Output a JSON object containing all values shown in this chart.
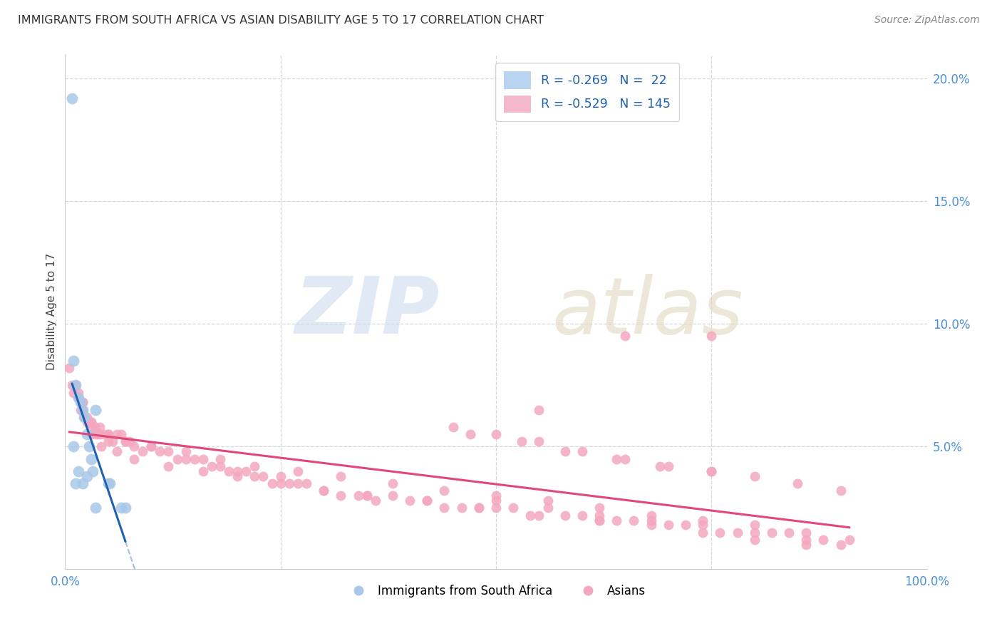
{
  "title": "IMMIGRANTS FROM SOUTH AFRICA VS ASIAN DISABILITY AGE 5 TO 17 CORRELATION CHART",
  "source": "Source: ZipAtlas.com",
  "ylabel": "Disability Age 5 to 17",
  "xlim": [
    0,
    100
  ],
  "ylim": [
    0,
    21
  ],
  "yticks": [
    5,
    10,
    15,
    20
  ],
  "ytick_labels": [
    "5.0%",
    "10.0%",
    "15.0%",
    "20.0%"
  ],
  "xticks": [
    0,
    25,
    50,
    75,
    100
  ],
  "xtick_labels": [
    "0.0%",
    "",
    "",
    "",
    "100.0%"
  ],
  "blue_color": "#a8c8e8",
  "pink_color": "#f4a8c0",
  "blue_line_color": "#2060b0",
  "pink_line_color": "#e04878",
  "grid_color": "#d8d8d8",
  "blue_x": [
    0.8,
    1.0,
    1.2,
    1.5,
    1.8,
    2.0,
    2.2,
    2.5,
    2.8,
    3.0,
    3.2,
    3.5,
    5.0,
    5.2,
    6.5,
    7.0,
    1.0,
    1.5,
    2.0,
    2.5,
    3.5,
    1.2
  ],
  "blue_y": [
    19.2,
    8.5,
    7.5,
    7.0,
    6.8,
    6.5,
    6.2,
    5.5,
    5.0,
    4.5,
    4.0,
    6.5,
    3.5,
    3.5,
    2.5,
    2.5,
    5.0,
    4.0,
    3.5,
    3.8,
    2.5,
    3.5
  ],
  "pink_x": [
    0.5,
    0.8,
    1.0,
    1.2,
    1.5,
    1.5,
    1.8,
    1.8,
    2.0,
    2.0,
    2.2,
    2.5,
    2.5,
    2.8,
    3.0,
    3.0,
    3.5,
    3.5,
    3.8,
    4.0,
    4.0,
    4.5,
    5.0,
    5.0,
    5.5,
    6.0,
    6.5,
    7.0,
    7.5,
    8.0,
    9.0,
    10.0,
    11.0,
    12.0,
    13.0,
    14.0,
    15.0,
    16.0,
    17.0,
    18.0,
    19.0,
    20.0,
    21.0,
    22.0,
    23.0,
    24.0,
    25.0,
    26.0,
    27.0,
    28.0,
    30.0,
    32.0,
    34.0,
    35.0,
    36.0,
    38.0,
    40.0,
    42.0,
    44.0,
    46.0,
    48.0,
    50.0,
    50.0,
    52.0,
    54.0,
    56.0,
    58.0,
    60.0,
    62.0,
    62.0,
    64.0,
    66.0,
    68.0,
    70.0,
    72.0,
    74.0,
    76.0,
    78.0,
    80.0,
    82.0,
    84.0,
    86.0,
    88.0,
    90.0,
    55.0,
    3.0,
    4.2,
    6.0,
    8.0,
    12.0,
    16.0,
    20.0,
    25.0,
    30.0,
    35.0,
    42.0,
    48.0,
    55.0,
    62.0,
    68.0,
    74.0,
    80.0,
    86.0,
    45.0,
    50.0,
    55.0,
    60.0,
    65.0,
    70.0,
    75.0,
    80.0,
    85.0,
    90.0,
    2.0,
    3.0,
    5.0,
    7.0,
    10.0,
    14.0,
    18.0,
    22.0,
    27.0,
    32.0,
    38.0,
    44.0,
    50.0,
    56.0,
    62.0,
    68.0,
    74.0,
    80.0,
    86.0,
    91.0,
    47.0,
    53.0,
    58.0,
    64.0,
    69.0,
    75.0,
    65.0,
    75.0
  ],
  "pink_y": [
    8.2,
    7.5,
    7.2,
    7.5,
    7.0,
    7.2,
    6.8,
    6.5,
    6.5,
    6.8,
    6.2,
    6.0,
    6.2,
    6.0,
    5.8,
    6.0,
    5.5,
    5.8,
    5.5,
    5.8,
    5.5,
    5.5,
    5.5,
    5.2,
    5.2,
    5.5,
    5.5,
    5.2,
    5.2,
    5.0,
    4.8,
    5.0,
    4.8,
    4.8,
    4.5,
    4.5,
    4.5,
    4.5,
    4.2,
    4.2,
    4.0,
    4.0,
    4.0,
    3.8,
    3.8,
    3.5,
    3.8,
    3.5,
    3.5,
    3.5,
    3.2,
    3.0,
    3.0,
    3.0,
    2.8,
    3.0,
    2.8,
    2.8,
    2.5,
    2.5,
    2.5,
    2.5,
    2.8,
    2.5,
    2.2,
    2.5,
    2.2,
    2.2,
    2.0,
    2.2,
    2.0,
    2.0,
    2.0,
    1.8,
    1.8,
    1.8,
    1.5,
    1.5,
    1.5,
    1.5,
    1.5,
    1.2,
    1.2,
    1.0,
    6.5,
    5.5,
    5.0,
    4.8,
    4.5,
    4.2,
    4.0,
    3.8,
    3.5,
    3.2,
    3.0,
    2.8,
    2.5,
    2.2,
    2.0,
    1.8,
    1.5,
    1.2,
    1.0,
    5.8,
    5.5,
    5.2,
    4.8,
    4.5,
    4.2,
    4.0,
    3.8,
    3.5,
    3.2,
    6.8,
    6.0,
    5.5,
    5.2,
    5.0,
    4.8,
    4.5,
    4.2,
    4.0,
    3.8,
    3.5,
    3.2,
    3.0,
    2.8,
    2.5,
    2.2,
    2.0,
    1.8,
    1.5,
    1.2,
    5.5,
    5.2,
    4.8,
    4.5,
    4.2,
    4.0,
    9.5,
    9.5
  ]
}
